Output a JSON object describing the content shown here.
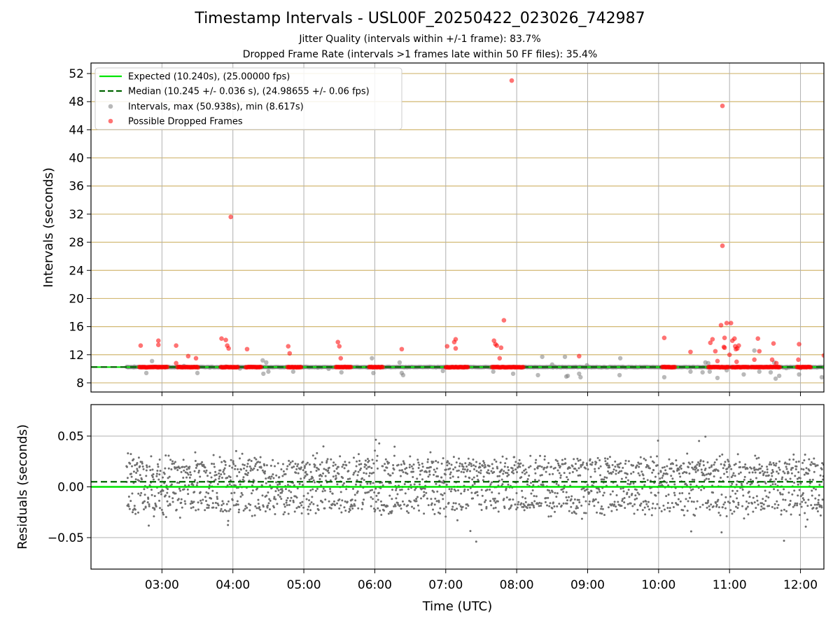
{
  "header": {
    "title": "Timestamp Intervals - USL00F_20250422_023026_742987",
    "subtitle1": "Jitter Quality (intervals within +/-1 frame): 83.7%",
    "subtitle2": "Dropped Frame Rate (intervals >1 frames late within 50 FF files): 35.4%"
  },
  "colors": {
    "expected": "#00e400",
    "median": "#006400",
    "intervals": "#808080",
    "dropped": "#ff0000",
    "hgrid_top": "#d2b873",
    "grid": "#b0b0b0",
    "residuals": "#6e6e6e"
  },
  "chart_data": [
    {
      "type": "scatter",
      "ylabel": "Intervals (seconds)",
      "ylim": [
        6.7,
        53.5
      ],
      "yticks": [
        "8",
        "12",
        "16",
        "20",
        "24",
        "28",
        "32",
        "36",
        "40",
        "44",
        "48",
        "52"
      ],
      "xlim_hours": [
        2.0,
        12.33
      ],
      "grid": "horizontal lines at y ticks, vertical lines at hour ticks",
      "legend_position": "top-left",
      "legend": [
        "Expected (10.240s), (25.00000 fps)",
        "Median (10.245 +/- 0.036 s), (24.98655 +/- 0.06 fps)",
        "Intervals, max (50.938s), min (8.617s)",
        "Possible Dropped Frames"
      ],
      "expected_interval": 10.24,
      "median_interval": 10.245,
      "series": [
        {
          "name": "Intervals, max (50.938s), min (8.617s)",
          "points": [
            [
              2.52,
              10.24
            ],
            [
              2.61,
              10.3
            ],
            [
              2.78,
              9.4
            ],
            [
              2.86,
              11.1
            ],
            [
              3.05,
              10.22
            ],
            [
              3.31,
              10.4
            ],
            [
              3.5,
              9.4
            ],
            [
              3.68,
              10.2
            ],
            [
              3.9,
              10.3
            ],
            [
              4.1,
              10.05
            ],
            [
              4.42,
              11.2
            ],
            [
              4.43,
              9.3
            ],
            [
              4.47,
              10.9
            ],
            [
              4.5,
              9.6
            ],
            [
              4.85,
              9.6
            ],
            [
              5.0,
              10.25
            ],
            [
              5.2,
              10.2
            ],
            [
              5.35,
              10.0
            ],
            [
              5.53,
              9.5
            ],
            [
              5.9,
              10.2
            ],
            [
              5.96,
              11.5
            ],
            [
              5.98,
              9.4
            ],
            [
              6.35,
              10.9
            ],
            [
              6.4,
              9.1
            ],
            [
              6.38,
              9.4
            ],
            [
              6.96,
              9.7
            ],
            [
              7.26,
              10.2
            ],
            [
              7.67,
              9.6
            ],
            [
              7.95,
              9.3
            ],
            [
              8.3,
              9.1
            ],
            [
              8.36,
              11.7
            ],
            [
              8.5,
              10.6
            ],
            [
              8.68,
              11.7
            ],
            [
              8.7,
              8.9
            ],
            [
              8.72,
              9.0
            ],
            [
              8.88,
              9.3
            ],
            [
              8.9,
              8.8
            ],
            [
              8.99,
              10.5
            ],
            [
              9.45,
              9.1
            ],
            [
              9.46,
              11.5
            ],
            [
              10.08,
              8.8
            ],
            [
              10.45,
              9.6
            ],
            [
              10.62,
              9.5
            ],
            [
              10.66,
              10.9
            ],
            [
              10.7,
              10.8
            ],
            [
              10.72,
              9.6
            ],
            [
              10.83,
              8.7
            ],
            [
              10.96,
              9.8
            ],
            [
              11.15,
              10.2
            ],
            [
              11.2,
              9.2
            ],
            [
              11.35,
              12.6
            ],
            [
              11.42,
              9.6
            ],
            [
              11.58,
              9.5
            ],
            [
              11.63,
              10.9
            ],
            [
              11.65,
              8.6
            ],
            [
              11.7,
              9.0
            ],
            [
              11.8,
              10.1
            ],
            [
              11.98,
              9.2
            ],
            [
              12.0,
              10.1
            ],
            [
              12.3,
              8.8
            ],
            [
              12.33,
              10.2
            ]
          ]
        },
        {
          "name": "Possible Dropped Frames",
          "clusters": [
            [
              2.68,
              3.08
            ],
            [
              3.22,
              3.52
            ],
            [
              3.83,
              4.08
            ],
            [
              4.18,
              4.4
            ],
            [
              4.77,
              4.97
            ],
            [
              5.45,
              5.67
            ],
            [
              5.92,
              6.12
            ],
            [
              7.0,
              7.32
            ],
            [
              7.65,
              8.1
            ],
            [
              10.05,
              10.24
            ],
            [
              10.7,
              11.0
            ],
            [
              11.03,
              11.28
            ],
            [
              11.3,
              11.72
            ],
            [
              11.95,
              12.15
            ]
          ],
          "cluster_value": 10.24,
          "points": [
            [
              2.7,
              13.3
            ],
            [
              2.95,
              13.4
            ],
            [
              2.95,
              14.0
            ],
            [
              3.2,
              13.3
            ],
            [
              3.2,
              10.8
            ],
            [
              3.37,
              11.8
            ],
            [
              3.48,
              11.5
            ],
            [
              3.84,
              14.3
            ],
            [
              3.9,
              14.1
            ],
            [
              3.92,
              13.3
            ],
            [
              3.94,
              12.9
            ],
            [
              3.97,
              31.6
            ],
            [
              4.2,
              12.8
            ],
            [
              4.78,
              13.2
            ],
            [
              4.8,
              12.2
            ],
            [
              5.48,
              13.8
            ],
            [
              5.5,
              13.2
            ],
            [
              5.52,
              11.5
            ],
            [
              6.38,
              12.8
            ],
            [
              7.02,
              13.2
            ],
            [
              7.12,
              13.8
            ],
            [
              7.14,
              14.2
            ],
            [
              7.14,
              12.9
            ],
            [
              7.68,
              14.0
            ],
            [
              7.7,
              13.5
            ],
            [
              7.72,
              13.3
            ],
            [
              7.78,
              13.0
            ],
            [
              7.82,
              16.9
            ],
            [
              7.76,
              11.5
            ],
            [
              7.93,
              51.0
            ],
            [
              8.88,
              11.8
            ],
            [
              10.08,
              14.4
            ],
            [
              10.45,
              12.4
            ],
            [
              10.73,
              13.7
            ],
            [
              10.76,
              14.2
            ],
            [
              10.8,
              12.5
            ],
            [
              10.83,
              11.1
            ],
            [
              10.9,
              27.5
            ],
            [
              10.9,
              47.4
            ],
            [
              10.88,
              16.2
            ],
            [
              10.92,
              13.1
            ],
            [
              10.93,
              14.4
            ],
            [
              10.93,
              13.0
            ],
            [
              10.96,
              16.5
            ],
            [
              11.02,
              16.5
            ],
            [
              11.0,
              12.0
            ],
            [
              11.04,
              14.0
            ],
            [
              11.07,
              14.3
            ],
            [
              11.08,
              13.2
            ],
            [
              11.09,
              12.8
            ],
            [
              11.11,
              12.9
            ],
            [
              11.13,
              13.3
            ],
            [
              11.1,
              11.0
            ],
            [
              11.35,
              11.3
            ],
            [
              11.4,
              14.3
            ],
            [
              11.42,
              12.5
            ],
            [
              11.6,
              11.3
            ],
            [
              11.62,
              13.6
            ],
            [
              11.66,
              10.8
            ],
            [
              11.98,
              13.5
            ],
            [
              11.97,
              11.3
            ],
            [
              12.33,
              11.9
            ]
          ]
        }
      ]
    },
    {
      "type": "scatter",
      "xlabel": "Time (UTC)",
      "ylabel": "Residuals (seconds)",
      "ylim": [
        -0.081,
        0.081
      ],
      "yticks": [
        "−0.05",
        "0.00",
        "0.05"
      ],
      "ytick_values": [
        -0.05,
        0.0,
        0.05
      ],
      "xlim_hours": [
        2.0,
        12.33
      ],
      "xticks": [
        "03:00",
        "04:00",
        "05:00",
        "06:00",
        "07:00",
        "08:00",
        "09:00",
        "10:00",
        "11:00",
        "12:00"
      ],
      "expected_residual": 0.0,
      "median_residual": 0.005,
      "residual_x_range": [
        2.5,
        12.33
      ],
      "residual_count": 2200
    }
  ]
}
